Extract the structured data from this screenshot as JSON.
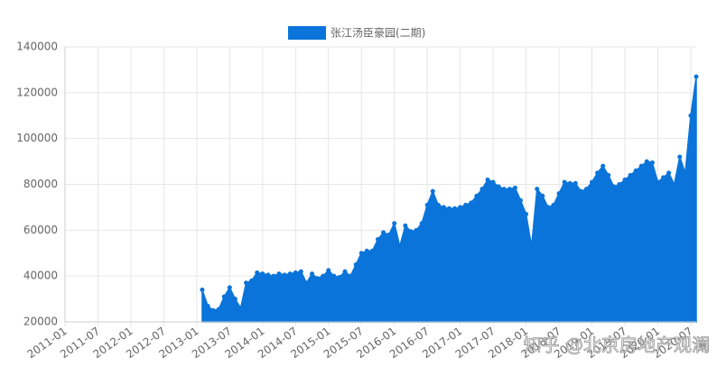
{
  "chart_data": {
    "type": "area",
    "series": [
      {
        "name": "张江汤臣豪园(二期)",
        "color": "#0a74da",
        "values": [
          34000,
          27000,
          25000,
          25500,
          31000,
          35000,
          30000,
          26000,
          37000,
          38000,
          41500,
          41000,
          40500,
          40000,
          41000,
          40500,
          41000,
          41500,
          42000,
          37000,
          41000,
          39000,
          40000,
          42500,
          40000,
          39500,
          42000,
          40000,
          45000,
          50000,
          51000,
          51000,
          56000,
          59000,
          58000,
          63000,
          53000,
          62000,
          59500,
          60000,
          63000,
          71000,
          77000,
          71000,
          70000,
          69500,
          69500,
          70000,
          71000,
          72000,
          75000,
          78000,
          82000,
          81000,
          79000,
          78000,
          78000,
          78500,
          73000,
          67000,
          53000,
          78000,
          75000,
          70000,
          71000,
          76000,
          81000,
          80500,
          80500,
          77000,
          78000,
          81000,
          85000,
          88000,
          84000,
          79000,
          80000,
          82000,
          84000,
          86000,
          88000,
          90000,
          89500,
          81000,
          83000,
          85000,
          80000,
          92000,
          85000,
          110000,
          127000
        ]
      }
    ],
    "x": [
      "2013-02",
      "2013-03",
      "2013-04",
      "2013-05",
      "2013-06",
      "2013-07",
      "2013-08",
      "2013-09",
      "2013-10",
      "2013-11",
      "2013-12",
      "2014-01",
      "2014-02",
      "2014-03",
      "2014-04",
      "2014-05",
      "2014-06",
      "2014-07",
      "2014-08",
      "2014-09",
      "2014-10",
      "2014-11",
      "2014-12",
      "2015-01",
      "2015-02",
      "2015-03",
      "2015-04",
      "2015-05",
      "2015-06",
      "2015-07",
      "2015-08",
      "2015-09",
      "2015-10",
      "2015-11",
      "2015-12",
      "2016-01",
      "2016-02",
      "2016-03",
      "2016-04",
      "2016-05",
      "2016-06",
      "2016-07",
      "2016-08",
      "2016-09",
      "2016-10",
      "2016-11",
      "2016-12",
      "2017-01",
      "2017-02",
      "2017-03",
      "2017-04",
      "2017-05",
      "2017-06",
      "2017-07",
      "2017-08",
      "2017-09",
      "2017-10",
      "2017-11",
      "2017-12",
      "2018-01",
      "2018-02",
      "2018-03",
      "2018-04",
      "2018-05",
      "2018-06",
      "2018-07",
      "2018-08",
      "2018-09",
      "2018-10",
      "2018-11",
      "2018-12",
      "2019-01",
      "2019-02",
      "2019-03",
      "2019-04",
      "2019-05",
      "2019-06",
      "2019-07",
      "2019-08",
      "2019-09",
      "2019-10",
      "2019-11",
      "2019-12",
      "2020-01",
      "2020-02",
      "2020-03",
      "2020-04",
      "2020-05",
      "2020-06",
      "2020-07",
      "2020-08"
    ],
    "xlim": [
      "2011-01",
      "2020-08"
    ],
    "xticks": [
      "2011-01",
      "2011-07",
      "2012-01",
      "2012-07",
      "2013-01",
      "2013-07",
      "2014-01",
      "2014-07",
      "2015-01",
      "2015-07",
      "2016-01",
      "2016-07",
      "2017-01",
      "2017-07",
      "2018-01",
      "2018-07",
      "2019-01",
      "2019-07",
      "2020-01",
      "2020-07"
    ],
    "ylim": [
      20000,
      140000
    ],
    "yticks": [
      20000,
      40000,
      60000,
      80000,
      100000,
      120000,
      140000
    ],
    "grid": true,
    "legend": "top",
    "watermark": "知乎 @北京房地产观澜"
  }
}
